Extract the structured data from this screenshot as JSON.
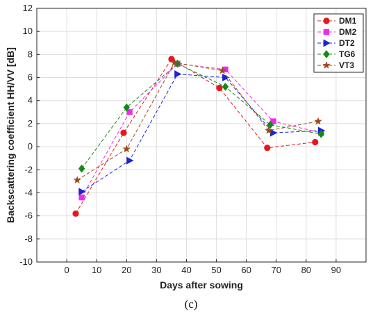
{
  "caption": "(c)",
  "chart_data": {
    "type": "line",
    "title": "",
    "xlabel": "Days after sowing",
    "ylabel": "Backscattering coefficient HH/VV [dB]",
    "xlim": [
      -10,
      100
    ],
    "ylim": [
      -10,
      12
    ],
    "xticks": [
      0,
      10,
      20,
      30,
      40,
      50,
      60,
      70,
      80,
      90
    ],
    "yticks": [
      -10,
      -8,
      -6,
      -4,
      -2,
      0,
      2,
      4,
      6,
      8,
      10,
      12
    ],
    "grid": true,
    "legend_position": "top-right",
    "series": [
      {
        "name": "DM1",
        "color": "#e8171f",
        "marker": "circle",
        "points": [
          [
            3,
            -5.8
          ],
          [
            19,
            1.2
          ],
          [
            35,
            7.6
          ],
          [
            51,
            5.1
          ],
          [
            67,
            -0.1
          ],
          [
            83,
            0.4
          ]
        ]
      },
      {
        "name": "DM2",
        "color": "#ee2ce8",
        "marker": "square",
        "points": [
          [
            5,
            -4.4
          ],
          [
            21,
            3.0
          ],
          [
            37,
            7.2
          ],
          [
            53,
            6.7
          ],
          [
            69,
            2.2
          ],
          [
            85,
            1.2
          ]
        ]
      },
      {
        "name": "DT2",
        "color": "#1e22d8",
        "marker": "triangle-right",
        "points": [
          [
            5,
            -3.9
          ],
          [
            21,
            -1.2
          ],
          [
            37,
            6.3
          ],
          [
            53,
            6.0
          ],
          [
            69,
            1.2
          ],
          [
            85,
            1.4
          ]
        ]
      },
      {
        "name": "TG6",
        "color": "#138a16",
        "marker": "diamond",
        "points": [
          [
            5,
            -1.9
          ],
          [
            20,
            3.4
          ],
          [
            37,
            7.2
          ],
          [
            53,
            5.2
          ],
          [
            68,
            1.9
          ],
          [
            85,
            1.1
          ]
        ]
      },
      {
        "name": "VT3",
        "color": "#9c4a1c",
        "marker": "star",
        "points": [
          [
            3.5,
            -2.9
          ],
          [
            20,
            -0.2
          ],
          [
            36,
            7.3
          ],
          [
            52,
            6.6
          ],
          [
            67.5,
            1.4
          ],
          [
            84,
            2.2
          ]
        ]
      }
    ]
  }
}
